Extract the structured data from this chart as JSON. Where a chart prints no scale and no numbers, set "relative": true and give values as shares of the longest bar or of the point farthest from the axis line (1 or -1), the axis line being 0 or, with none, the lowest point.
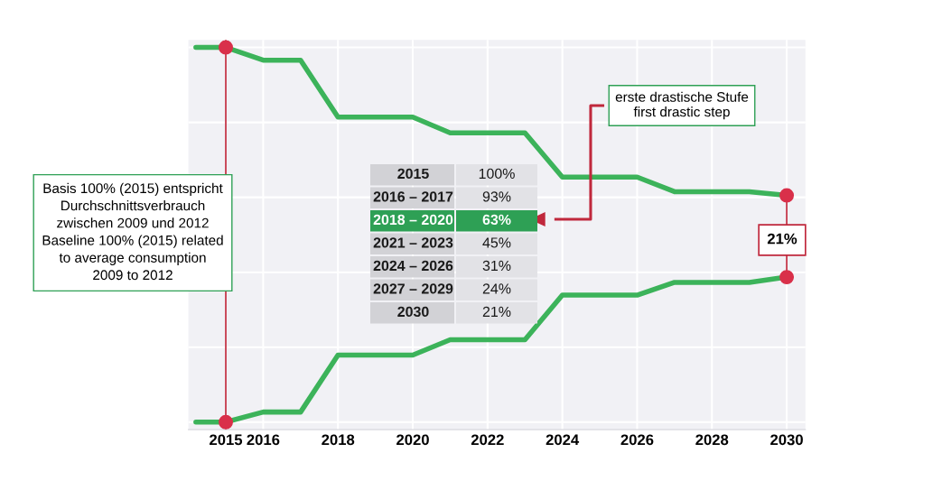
{
  "chart_data": {
    "type": "line",
    "relative": true,
    "xlim": [
      2014,
      2030.5
    ],
    "xticks": [
      2015,
      2016,
      2018,
      2020,
      2022,
      2024,
      2026,
      2028,
      2030
    ],
    "grid": true,
    "line_style": "solid",
    "series": [
      {
        "color": "#3cb35a",
        "x": [
          2014.2,
          2015,
          2016,
          2017,
          2018,
          2020,
          2021,
          2023,
          2024,
          2026,
          2027,
          2029,
          2030
        ],
        "values": [
          1,
          1,
          0.966,
          0.966,
          0.814,
          0.814,
          0.772,
          0.772,
          0.654,
          0.654,
          0.615,
          0.615,
          0.605
        ]
      },
      {
        "color": "#3cb35a",
        "x": [
          2014.2,
          2015,
          2016,
          2017,
          2018,
          2020,
          2021,
          2023,
          2024,
          2026,
          2027,
          2029,
          2030
        ],
        "values": [
          0,
          0,
          0.027,
          0.027,
          0.179,
          0.179,
          0.22,
          0.22,
          0.339,
          0.339,
          0.373,
          0.373,
          0.387
        ]
      },
      {
        "type": "scatter",
        "marker": "circle",
        "color": "#d9304a",
        "x": [
          2015,
          2015,
          2030,
          2030
        ],
        "values": [
          1,
          0,
          0.605,
          0.387
        ]
      }
    ],
    "ref_lines": [
      {
        "axis": "x",
        "value": 2015,
        "color": "#c0283c"
      }
    ],
    "annotations": [
      "Basis 100% (2015) entspricht\nDurchschnittsverbrauch\nzwischen 2009 und 2012\nBaseline 100% (2015) related\nto average consumption\n2009 to 2012",
      "erste drastische Stufe\nfirst drastic step",
      "21%",
      "2015",
      "100%",
      "2016 – 2017",
      "93%",
      "2018 – 2020",
      "63%",
      "2021 – 2023",
      "45%",
      "2024 – 2026",
      "31%",
      "2027 – 2029",
      "24%",
      "2030",
      "21%"
    ]
  }
}
